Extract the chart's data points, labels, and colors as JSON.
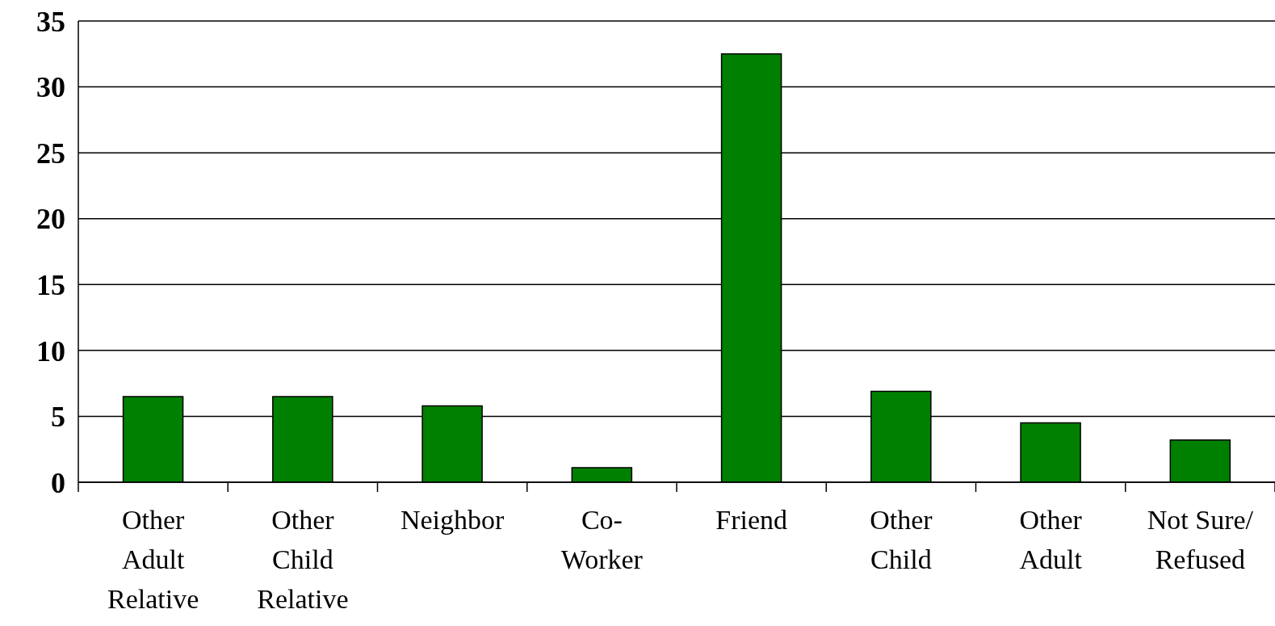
{
  "chart_data": {
    "type": "bar",
    "categories": [
      "Other Adult Relative",
      "Other Child Relative",
      "Neighbor",
      "Co-Worker",
      "Friend",
      "Other Child",
      "Other Adult",
      "Not Sure/Refused"
    ],
    "values": [
      6.5,
      6.5,
      5.8,
      1.1,
      32.5,
      6.9,
      4.5,
      3.2
    ],
    "color": "#008000",
    "ylim": [
      0,
      35
    ],
    "yticks": [
      0,
      5,
      10,
      15,
      20,
      25,
      30,
      35
    ],
    "grid": "y"
  }
}
